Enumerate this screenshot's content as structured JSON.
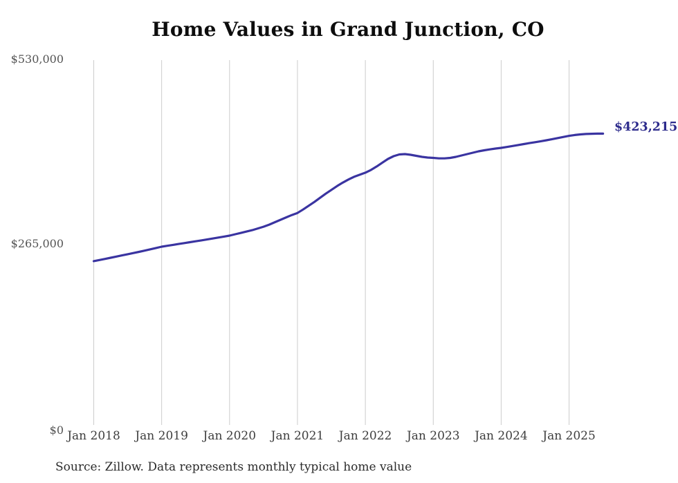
{
  "chart": {
    "title": "Home Values in Grand Junction, CO",
    "title_color": "#0d0d0d",
    "source_note": "Source: Zillow. Data represents monthly typical home value",
    "end_label": "$423,215",
    "end_label_color": "#2d2b8c",
    "line_color": "#3a34a1",
    "grid_color": "#cccccc",
    "y_axis": {
      "labels": [
        "$530,000",
        "$265,000",
        "$0"
      ],
      "color": "#545454"
    },
    "x_axis": {
      "labels": [
        "Jan 2018",
        "Jan 2019",
        "Jan 2020",
        "Jan 2021",
        "Jan 2022",
        "Jan 2023",
        "Jan 2024",
        "Jan 2025"
      ],
      "color": "#3d3d3d"
    }
  },
  "chart_data": {
    "type": "line",
    "title": "Home Values in Grand Junction, CO",
    "unit": "USD",
    "x_interval": "monthly",
    "xlabel": "",
    "ylabel": "",
    "ylim": [
      0,
      530000
    ],
    "y_tick_values": [
      0,
      265000,
      530000
    ],
    "y_tick_labels": [
      "$0",
      "$265,000",
      "$530,000"
    ],
    "x_tick_labels": [
      "Jan 2018",
      "Jan 2019",
      "Jan 2020",
      "Jan 2021",
      "Jan 2022",
      "Jan 2023",
      "Jan 2024",
      "Jan 2025"
    ],
    "grid": "vertical-yearly",
    "legend": "none",
    "final_value": 423215,
    "final_value_label": "$423,215",
    "source": "Source: Zillow. Data represents monthly typical home value",
    "months": [
      "Jan 2018",
      "Feb 2018",
      "Mar 2018",
      "Apr 2018",
      "May 2018",
      "Jun 2018",
      "Jul 2018",
      "Aug 2018",
      "Sep 2018",
      "Oct 2018",
      "Nov 2018",
      "Dec 2018",
      "Jan 2019",
      "Feb 2019",
      "Mar 2019",
      "Apr 2019",
      "May 2019",
      "Jun 2019",
      "Jul 2019",
      "Aug 2019",
      "Sep 2019",
      "Oct 2019",
      "Nov 2019",
      "Dec 2019",
      "Jan 2020",
      "Feb 2020",
      "Mar 2020",
      "Apr 2020",
      "May 2020",
      "Jun 2020",
      "Jul 2020",
      "Aug 2020",
      "Sep 2020",
      "Oct 2020",
      "Nov 2020",
      "Dec 2020",
      "Jan 2021",
      "Feb 2021",
      "Mar 2021",
      "Apr 2021",
      "May 2021",
      "Jun 2021",
      "Jul 2021",
      "Aug 2021",
      "Sep 2021",
      "Oct 2021",
      "Nov 2021",
      "Dec 2021",
      "Jan 2022",
      "Feb 2022",
      "Mar 2022",
      "Apr 2022",
      "May 2022",
      "Jun 2022",
      "Jul 2022",
      "Aug 2022",
      "Sep 2022",
      "Oct 2022",
      "Nov 2022",
      "Dec 2022",
      "Jan 2023",
      "Feb 2023",
      "Mar 2023",
      "Apr 2023",
      "May 2023",
      "Jun 2023",
      "Jul 2023",
      "Aug 2023",
      "Sep 2023",
      "Oct 2023",
      "Nov 2023",
      "Dec 2023",
      "Jan 2024",
      "Feb 2024",
      "Mar 2024",
      "Apr 2024",
      "May 2024",
      "Jun 2024",
      "Jul 2024",
      "Aug 2024",
      "Sep 2024",
      "Oct 2024",
      "Nov 2024",
      "Dec 2024",
      "Jan 2025",
      "Feb 2025",
      "Mar 2025",
      "Apr 2025",
      "May 2025",
      "Jun 2025",
      "Jul 2025"
    ],
    "values": [
      238000,
      239600,
      241200,
      242900,
      244600,
      246300,
      248000,
      249700,
      251400,
      253300,
      255200,
      257100,
      259000,
      260300,
      261600,
      262900,
      264200,
      265500,
      266800,
      268100,
      269400,
      270800,
      272200,
      273600,
      275000,
      277000,
      279000,
      281000,
      283000,
      285500,
      288000,
      291000,
      294500,
      298000,
      301500,
      305000,
      308000,
      313000,
      318500,
      324000,
      330000,
      336000,
      341500,
      347000,
      352000,
      356500,
      360500,
      363500,
      366500,
      370500,
      375500,
      381000,
      386500,
      390500,
      393000,
      393500,
      392500,
      391000,
      389500,
      388500,
      388000,
      387300,
      387300,
      388000,
      389500,
      391500,
      393500,
      395500,
      397500,
      399000,
      400300,
      401500,
      402500,
      403800,
      405200,
      406600,
      408000,
      409400,
      410800,
      412200,
      413600,
      415200,
      416800,
      418400,
      420000,
      421200,
      422100,
      422700,
      423000,
      423150,
      423215
    ]
  }
}
